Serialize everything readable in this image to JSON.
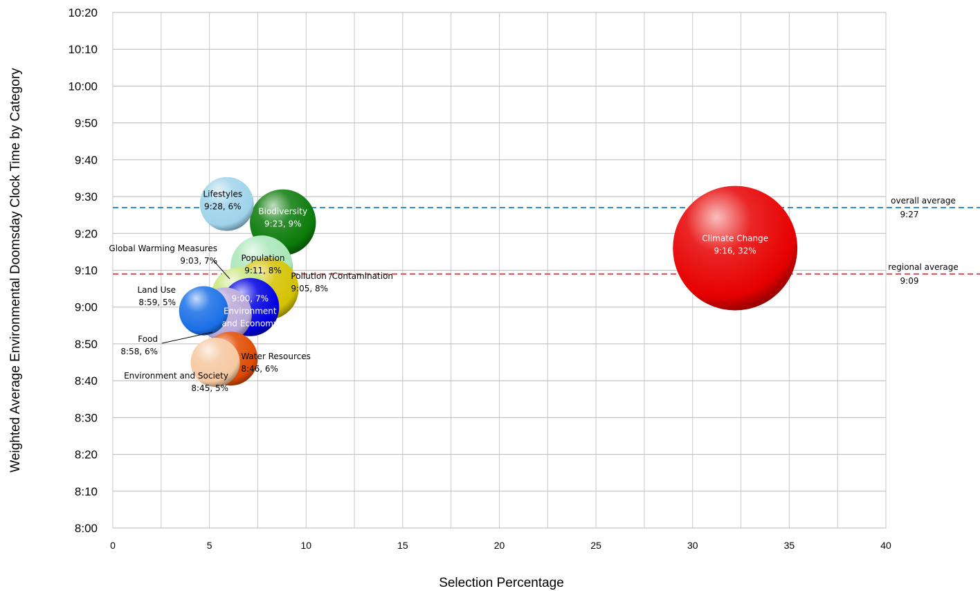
{
  "chart_data": {
    "type": "bubble",
    "xlabel": "Selection Percentage",
    "ylabel": "Weighted Average Environmental Doomsday Clock Time by Category",
    "xlim": [
      0,
      40
    ],
    "ylim": [
      "8:00",
      "10:20"
    ],
    "x_ticks": [
      "0",
      "5",
      "10",
      "15",
      "20",
      "25",
      "30",
      "35",
      "40"
    ],
    "y_ticks": [
      "8:00",
      "8:10",
      "8:20",
      "8:30",
      "8:40",
      "8:50",
      "9:00",
      "9:10",
      "9:20",
      "9:30",
      "9:40",
      "9:50",
      "10:00",
      "10:10",
      "10:20"
    ],
    "grid": true,
    "legend": "none",
    "series": [
      {
        "name": "Climate Change",
        "time": "9:16",
        "pct_label": "32%",
        "x": 32.2,
        "y": "9:16",
        "size": 32,
        "color": "#e60000",
        "label": [
          "Climate Change",
          "9:16, 32%"
        ],
        "label_color": "white"
      },
      {
        "name": "Lifestyles",
        "time": "9:28",
        "pct_label": "6%",
        "x": 5.9,
        "y": "9:28",
        "size": 6,
        "color": "#9fd3ea",
        "label": [
          "Lifestyles",
          "9:28, 6%"
        ],
        "label_color": "black"
      },
      {
        "name": "Biodiversity",
        "time": "9:23",
        "pct_label": "9%",
        "x": 8.8,
        "y": "9:23",
        "size": 9,
        "color": "#0a7a0a",
        "label": [
          "Biodiversity",
          "9:23, 9%"
        ],
        "label_color": "white"
      },
      {
        "name": "Population",
        "time": "9:11",
        "pct_label": "8%",
        "x": 7.7,
        "y": "9:11",
        "size": 8,
        "color": "#a8e6b8",
        "label": [
          "Population",
          "9:11, 8%"
        ],
        "label_color": "black"
      },
      {
        "name": "Pollution /Contamination",
        "time": "9:05",
        "pct_label": "8%",
        "x": 8.0,
        "y": "9:05",
        "size": 8,
        "color": "#d4c200",
        "label": [
          "Pollution /Contamination",
          "9:05, 8%"
        ],
        "label_color": "black"
      },
      {
        "name": "Global Warming Measures",
        "time": "9:03",
        "pct_label": "7%",
        "x": 6.6,
        "y": "9:03",
        "size": 7,
        "color": "#c8e67a",
        "label": [
          "Global Warming Measures",
          "9:03, 7%"
        ],
        "label_color": "black"
      },
      {
        "name": "Land Use",
        "time": "8:59",
        "pct_label": "5%",
        "x": 4.7,
        "y": "8:59",
        "size": 5,
        "color": "#1a6fe6",
        "label": [
          "Land Use",
          "8:59, 5%"
        ],
        "label_color": "black"
      },
      {
        "name": "Food",
        "time": "8:58",
        "pct_label": "6%",
        "x": 5.8,
        "y": "8:58",
        "size": 6,
        "color": "#b8a8d8",
        "label": [
          "Food",
          "8:58, 6%"
        ],
        "label_color": "black"
      },
      {
        "name": "Environment and Economy",
        "time": "9:00",
        "pct_label": "7%",
        "x": 7.1,
        "y": "9:00",
        "size": 7,
        "color": "#0000e0",
        "label": [
          "9:00, 7%",
          "Environment",
          "and Economy"
        ],
        "label_color": "white"
      },
      {
        "name": "Water Resources",
        "time": "8:46",
        "pct_label": "6%",
        "x": 6.1,
        "y": "8:46",
        "size": 6,
        "color": "#e04a00",
        "label": [
          "Water Resources",
          "8:46, 6%"
        ],
        "label_color": "black"
      },
      {
        "name": "Environment and Society",
        "time": "8:45",
        "pct_label": "5%",
        "x": 5.3,
        "y": "8:45",
        "size": 5,
        "color": "#f5c8a0",
        "label": [
          "Environment and Society",
          "8:45, 5%"
        ],
        "label_color": "black"
      }
    ],
    "reference_lines": [
      {
        "name": "overall average",
        "value": "9:27",
        "color": "#2e8bd0",
        "style": "dashed"
      },
      {
        "name": "regional average",
        "value": "9:09",
        "color": "#e0504a",
        "style": "dashed"
      }
    ]
  }
}
